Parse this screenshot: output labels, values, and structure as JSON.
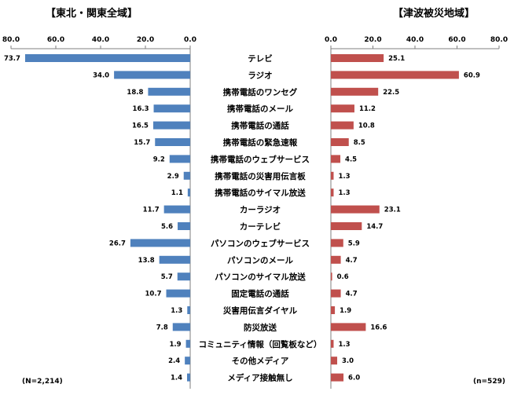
{
  "panels": {
    "left": {
      "title": "【東北・関東全域】",
      "n": "(N=2,214)"
    },
    "right": {
      "title": "【津波被災地域】",
      "n": "(n=529)"
    }
  },
  "colors": {
    "left_bar": "#4F81BD",
    "right_bar": "#C0504D",
    "axis": "#7F7F7F"
  },
  "chart_data": [
    {
      "type": "bar",
      "orientation": "horizontal",
      "direction": "reversed",
      "title": "【東北・関東全域】",
      "xlim": [
        0,
        80
      ],
      "ticks": [
        "80.0",
        "60.0",
        "40.0",
        "20.0",
        "0.0"
      ],
      "tick_values": [
        80,
        60,
        40,
        20,
        0
      ],
      "categories": [
        "テレビ",
        "ラジオ",
        "携帯電話のワンセグ",
        "携帯電話のメール",
        "携帯電話の通話",
        "携帯電話の緊急速報",
        "携帯電話のウェブサービス",
        "携帯電話の災害用伝言板",
        "携帯電話のサイマル放送",
        "カーラジオ",
        "カーテレビ",
        "パソコンのウェブサービス",
        "パソコンのメール",
        "パソコンのサイマル放送",
        "固定電話の通話",
        "災害用伝言ダイヤル",
        "防災放送",
        "コミュニティ情報（回覧板など）",
        "その他メディア",
        "メディア接触無し"
      ],
      "values": [
        73.7,
        34.0,
        18.8,
        16.3,
        16.5,
        15.7,
        9.2,
        2.9,
        1.1,
        11.7,
        5.6,
        26.7,
        13.8,
        5.7,
        10.7,
        1.3,
        7.8,
        1.9,
        2.4,
        1.4
      ],
      "labels": [
        "73.7",
        "34.0",
        "18.8",
        "16.3",
        "16.5",
        "15.7",
        "9.2",
        "2.9",
        "1.1",
        "11.7",
        "5.6",
        "26.7",
        "13.8",
        "5.7",
        "10.7",
        "1.3",
        "7.8",
        "1.9",
        "2.4",
        "1.4"
      ],
      "grid": false
    },
    {
      "type": "bar",
      "orientation": "horizontal",
      "title": "【津波被災地域】",
      "xlim": [
        0,
        80
      ],
      "ticks": [
        "0.0",
        "20.0",
        "40.0",
        "60.0",
        "80.0"
      ],
      "tick_values": [
        0,
        20,
        40,
        60,
        80
      ],
      "categories": [
        "テレビ",
        "ラジオ",
        "携帯電話のワンセグ",
        "携帯電話のメール",
        "携帯電話の通話",
        "携帯電話の緊急速報",
        "携帯電話のウェブサービス",
        "携帯電話の災害用伝言板",
        "携帯電話のサイマル放送",
        "カーラジオ",
        "カーテレビ",
        "パソコンのウェブサービス",
        "パソコンのメール",
        "パソコンのサイマル放送",
        "固定電話の通話",
        "災害用伝言ダイヤル",
        "防災放送",
        "コミュニティ情報（回覧板など）",
        "その他メディア",
        "メディア接触無し"
      ],
      "values": [
        25.1,
        60.9,
        22.5,
        11.2,
        10.8,
        8.5,
        4.5,
        1.3,
        1.3,
        23.1,
        14.7,
        5.9,
        4.7,
        0.6,
        4.7,
        1.9,
        16.6,
        1.3,
        3.0,
        6.0
      ],
      "labels": [
        "25.1",
        "60.9",
        "22.5",
        "11.2",
        "10.8",
        "8.5",
        "4.5",
        "1.3",
        "1.3",
        "23.1",
        "14.7",
        "5.9",
        "4.7",
        "0.6",
        "4.7",
        "1.9",
        "16.6",
        "1.3",
        "3.0",
        "6.0"
      ],
      "grid": false
    }
  ]
}
